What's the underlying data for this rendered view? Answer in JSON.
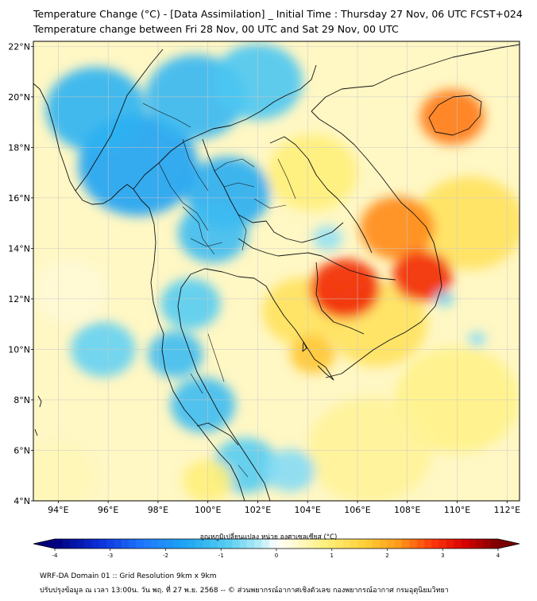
{
  "title": {
    "line1": "Temperature Change (°C) - [Data Assimilation] _ Initial Time : Thursday 27 Nov, 06 UTC FCST+024",
    "line2": "Temperature change between Fri 28 Nov, 00 UTC and Sat 29 Nov, 00 UTC"
  },
  "map": {
    "lat_ticks": [
      {
        "value": 22,
        "label": "22°N"
      },
      {
        "value": 20,
        "label": "20°N"
      },
      {
        "value": 18,
        "label": "18°N"
      },
      {
        "value": 16,
        "label": "16°N"
      },
      {
        "value": 14,
        "label": "14°N"
      },
      {
        "value": 12,
        "label": "12°N"
      },
      {
        "value": 10,
        "label": "10°N"
      },
      {
        "value": 8,
        "label": "8°N"
      },
      {
        "value": 6,
        "label": "6°N"
      },
      {
        "value": 4,
        "label": "4°N"
      }
    ],
    "lon_ticks": [
      {
        "value": 94,
        "label": "94°E"
      },
      {
        "value": 96,
        "label": "96°E"
      },
      {
        "value": 98,
        "label": "98°E"
      },
      {
        "value": 100,
        "label": "100°E"
      },
      {
        "value": 102,
        "label": "102°E"
      },
      {
        "value": 104,
        "label": "104°E"
      },
      {
        "value": 106,
        "label": "106°E"
      },
      {
        "value": 108,
        "label": "108°E"
      },
      {
        "value": 110,
        "label": "110°E"
      },
      {
        "value": 112,
        "label": "112°E"
      }
    ],
    "lat_range": [
      4,
      22.2
    ],
    "lon_range": [
      93,
      112.5
    ],
    "anomalies": [
      {
        "lon": 97.2,
        "lat": 17.3,
        "value": -1.7,
        "radius_deg": 2.4
      },
      {
        "lon": 95.5,
        "lat": 19.5,
        "value": -1.4,
        "radius_deg": 2.0
      },
      {
        "lon": 100.8,
        "lat": 16.2,
        "value": -1.5,
        "radius_deg": 1.7
      },
      {
        "lon": 99.5,
        "lat": 20.0,
        "value": -1.3,
        "radius_deg": 2.0
      },
      {
        "lon": 102.0,
        "lat": 20.6,
        "value": -1.0,
        "radius_deg": 1.8
      },
      {
        "lon": 100.2,
        "lat": 14.6,
        "value": -1.2,
        "radius_deg": 1.4
      },
      {
        "lon": 99.3,
        "lat": 11.8,
        "value": -0.9,
        "radius_deg": 1.2
      },
      {
        "lon": 98.7,
        "lat": 9.8,
        "value": -1.2,
        "radius_deg": 1.1
      },
      {
        "lon": 99.8,
        "lat": 7.8,
        "value": -1.2,
        "radius_deg": 1.3
      },
      {
        "lon": 101.5,
        "lat": 5.4,
        "value": -0.9,
        "radius_deg": 1.3
      },
      {
        "lon": 95.8,
        "lat": 10.0,
        "value": -0.8,
        "radius_deg": 1.3
      },
      {
        "lon": 103.3,
        "lat": 5.2,
        "value": -0.6,
        "radius_deg": 1.0
      },
      {
        "lon": 105.5,
        "lat": 12.4,
        "value": 3.0,
        "radius_deg": 1.4
      },
      {
        "lon": 108.6,
        "lat": 12.9,
        "value": 3.0,
        "radius_deg": 1.2
      },
      {
        "lon": 107.6,
        "lat": 14.8,
        "value": 2.3,
        "radius_deg": 1.5
      },
      {
        "lon": 109.8,
        "lat": 19.2,
        "value": 2.4,
        "radius_deg": 1.3
      },
      {
        "lon": 104.2,
        "lat": 9.8,
        "value": 1.7,
        "radius_deg": 0.9
      },
      {
        "lon": 106.8,
        "lat": 11.0,
        "value": 1.2,
        "radius_deg": 2.0
      },
      {
        "lon": 103.8,
        "lat": 11.5,
        "value": 1.2,
        "radius_deg": 1.6
      },
      {
        "lon": 110.5,
        "lat": 15.0,
        "value": 1.2,
        "radius_deg": 2.2
      },
      {
        "lon": 104.2,
        "lat": 17.0,
        "value": 0.9,
        "radius_deg": 1.8
      },
      {
        "lon": 110.0,
        "lat": 8.0,
        "value": 0.8,
        "radius_deg": 2.5
      },
      {
        "lon": 106.5,
        "lat": 6.0,
        "value": 0.7,
        "radius_deg": 2.5
      },
      {
        "lon": 109.5,
        "lat": 12.0,
        "value": -0.8,
        "radius_deg": 0.35
      },
      {
        "lon": 110.8,
        "lat": 10.4,
        "value": -0.6,
        "radius_deg": 0.35
      },
      {
        "lon": 104.8,
        "lat": 14.4,
        "value": -0.5,
        "radius_deg": 0.6
      },
      {
        "lon": 100.0,
        "lat": 4.8,
        "value": 0.9,
        "radius_deg": 1.0
      },
      {
        "lon": 94.0,
        "lat": 5.0,
        "value": 0.5,
        "radius_deg": 1.5
      },
      {
        "lon": 94.5,
        "lat": 12.3,
        "value": 0.3,
        "radius_deg": 1.5
      }
    ]
  },
  "colorbar": {
    "title": "อุณหภูมิเปลี่ยนแปลง หน่วย องศาเซลเซียส (°C)",
    "min": -4,
    "max": 4,
    "ticks": [
      {
        "value": -4,
        "label": "-4"
      },
      {
        "value": -3,
        "label": "-3"
      },
      {
        "value": -2,
        "label": "-2"
      },
      {
        "value": -1,
        "label": "-1"
      },
      {
        "value": 0,
        "label": "0"
      },
      {
        "value": 1,
        "label": "1"
      },
      {
        "value": 2,
        "label": "2"
      },
      {
        "value": 3,
        "label": "3"
      },
      {
        "value": 4,
        "label": "4"
      }
    ],
    "stops": [
      {
        "value": -4.0,
        "color": "#00007a"
      },
      {
        "value": -3.2,
        "color": "#0b2fd9"
      },
      {
        "value": -2.4,
        "color": "#1f78ff"
      },
      {
        "value": -1.6,
        "color": "#1fa8f2"
      },
      {
        "value": -0.9,
        "color": "#55ccf2"
      },
      {
        "value": -0.3,
        "color": "#b6ecf7"
      },
      {
        "value": 0.0,
        "color": "#ffffff"
      },
      {
        "value": 0.3,
        "color": "#fffad6"
      },
      {
        "value": 0.9,
        "color": "#fff07a"
      },
      {
        "value": 1.6,
        "color": "#ffd038"
      },
      {
        "value": 2.2,
        "color": "#ff9a1a"
      },
      {
        "value": 2.8,
        "color": "#ff3a0a"
      },
      {
        "value": 3.4,
        "color": "#d80000"
      },
      {
        "value": 4.0,
        "color": "#7a0000"
      }
    ]
  },
  "footer": {
    "line1": "WRF-DA Domain 01 :: Grid Resolution 9km x 9km",
    "line2": "ปรับปรุงข้อมูล ณ เวลา 13:00น. วัน พฤ. ที่ 27 พ.ย. 2568 -- © ส่วนพยากรณ์อากาศเชิงตัวเลข กองพยากรณ์อากาศ กรมอุตุนิยมวิทยา"
  }
}
